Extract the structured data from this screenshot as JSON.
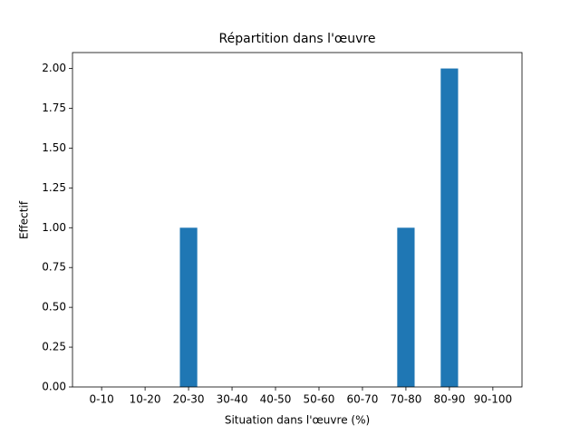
{
  "chart_data": {
    "type": "bar",
    "title": "Répartition dans l'œuvre",
    "xlabel": "Situation dans l'œuvre (%)",
    "ylabel": "Effectif",
    "categories": [
      "0-10",
      "10-20",
      "20-30",
      "30-40",
      "40-50",
      "50-60",
      "60-70",
      "70-80",
      "80-90",
      "90-100"
    ],
    "values": [
      0,
      0,
      1,
      0,
      0,
      0,
      0,
      1,
      2,
      0
    ],
    "color": "#1f77b4",
    "ylim": [
      0,
      2.1
    ],
    "yticks": [
      {
        "value": 0,
        "label": "0.00"
      },
      {
        "value": 0.25,
        "label": "0.25"
      },
      {
        "value": 0.5,
        "label": "0.50"
      },
      {
        "value": 0.75,
        "label": "0.75"
      },
      {
        "value": 1,
        "label": "1.00"
      },
      {
        "value": 1.25,
        "label": "1.25"
      },
      {
        "value": 1.5,
        "label": "1.50"
      },
      {
        "value": 1.75,
        "label": "1.75"
      },
      {
        "value": 2,
        "label": "2.00"
      }
    ],
    "grid": false
  }
}
